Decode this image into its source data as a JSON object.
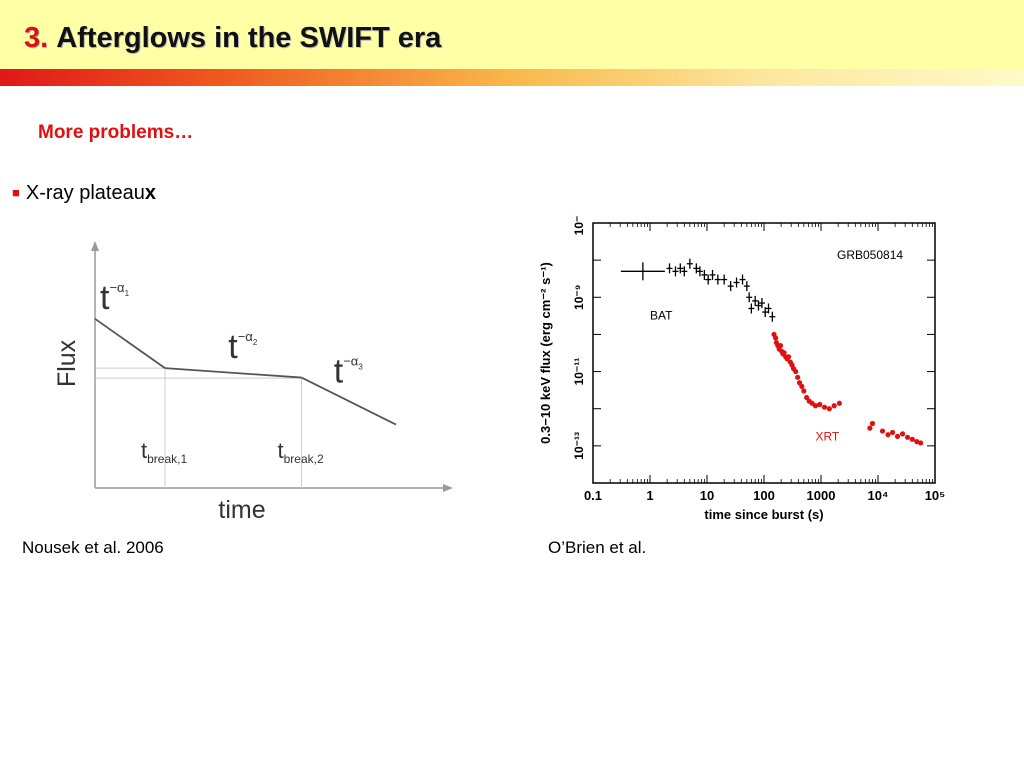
{
  "header": {
    "number": "3.",
    "title": "Afterglows in the SWIFT era"
  },
  "subtitle": "More problems…",
  "bullet": {
    "text": "X-ray plateau",
    "bold_suffix": "x"
  },
  "captions": {
    "left": "Nousek et al. 2006",
    "right": "O’Brien et al."
  },
  "colors": {
    "accent": "#e01010",
    "header_bg": "#ffffa6",
    "xrt": "#dd1111"
  },
  "chart_data": [
    {
      "type": "line",
      "xlabel": "time",
      "ylabel": "Flux",
      "segments": [
        {
          "label_base": "t",
          "label_exp": "−α",
          "label_sub": "1"
        },
        {
          "label_base": "t",
          "label_exp": "−α",
          "label_sub": "2"
        },
        {
          "label_base": "t",
          "label_exp": "−α",
          "label_sub": "3"
        }
      ],
      "breaks": [
        {
          "label_base": "t",
          "label_sub": "break,1"
        },
        {
          "label_base": "t",
          "label_sub": "break,2"
        }
      ],
      "ylim": [
        0,
        1
      ],
      "x": [
        0,
        0.2,
        0.59,
        0.86
      ],
      "y": [
        0.72,
        0.51,
        0.47,
        0.27
      ],
      "break_x": [
        0.2,
        0.59
      ]
    },
    {
      "type": "scatter",
      "title": "GRB050814",
      "xlabel": "time since burst (s)",
      "ylabel": "0.3−10 keV flux (erg cm⁻² s⁻¹)",
      "xscale": "log",
      "yscale": "log",
      "xlim": [
        0.1,
        100000
      ],
      "ylim": [
        1e-14,
        1e-07
      ],
      "x_ticks": [
        {
          "value": 0.1,
          "label": "0.1"
        },
        {
          "value": 1,
          "label": "1"
        },
        {
          "value": 10,
          "label": "10"
        },
        {
          "value": 100,
          "label": "100"
        },
        {
          "value": 1000,
          "label": "1000"
        },
        {
          "value": 10000,
          "label": "10⁴"
        },
        {
          "value": 100000,
          "label": "10⁵"
        }
      ],
      "y_ticks": [
        {
          "value": 1e-07,
          "label": "10⁻⁷"
        },
        {
          "value": 1e-09,
          "label": "10⁻⁹"
        },
        {
          "value": 1e-11,
          "label": "10⁻¹¹"
        },
        {
          "value": 1e-13,
          "label": "10⁻¹³"
        }
      ],
      "series": [
        {
          "name": "BAT",
          "color": "#000000",
          "x": [
            0.75,
            2.2,
            2.8,
            3.4,
            4.0,
            5.0,
            6.5,
            7.5,
            9.0,
            10.5,
            12.5,
            15.5,
            20,
            26,
            33,
            42,
            50,
            55,
            60,
            70,
            80,
            92,
            105,
            120,
            140
          ],
          "y": [
            5e-09,
            6e-09,
            5e-09,
            6e-09,
            5e-09,
            8e-09,
            6e-09,
            5e-09,
            4e-09,
            3e-09,
            4e-09,
            3e-09,
            3e-09,
            2e-09,
            2.5e-09,
            3e-09,
            2e-09,
            1e-09,
            5e-10,
            8e-10,
            6e-10,
            7e-10,
            4e-10,
            5e-10,
            3e-10
          ]
        },
        {
          "name": "XRT",
          "color": "#dd1111",
          "x": [
            150,
            160,
            165,
            175,
            185,
            195,
            205,
            215,
            225,
            240,
            255,
            270,
            290,
            310,
            330,
            360,
            390,
            420,
            460,
            500,
            560,
            620,
            700,
            800,
            950,
            1150,
            1400,
            1700,
            2100,
            7200,
            8000,
            12000,
            15000,
            18000,
            22000,
            27000,
            33000,
            40000,
            48000,
            56000
          ],
          "y": [
            1e-10,
            8e-11,
            6e-11,
            5e-11,
            4e-11,
            5e-11,
            3.5e-11,
            3e-11,
            3.2e-11,
            2.5e-11,
            2.2e-11,
            2.5e-11,
            1.8e-11,
            1.5e-11,
            1.2e-11,
            1e-11,
            7e-12,
            5e-12,
            4e-12,
            3e-12,
            2e-12,
            1.6e-12,
            1.4e-12,
            1.2e-12,
            1.3e-12,
            1.1e-12,
            1e-12,
            1.2e-12,
            1.4e-12,
            3e-13,
            4e-13,
            2.5e-13,
            2e-13,
            2.3e-13,
            1.8e-13,
            2.1e-13,
            1.7e-13,
            1.5e-13,
            1.3e-13,
            1.2e-13
          ]
        }
      ]
    }
  ]
}
